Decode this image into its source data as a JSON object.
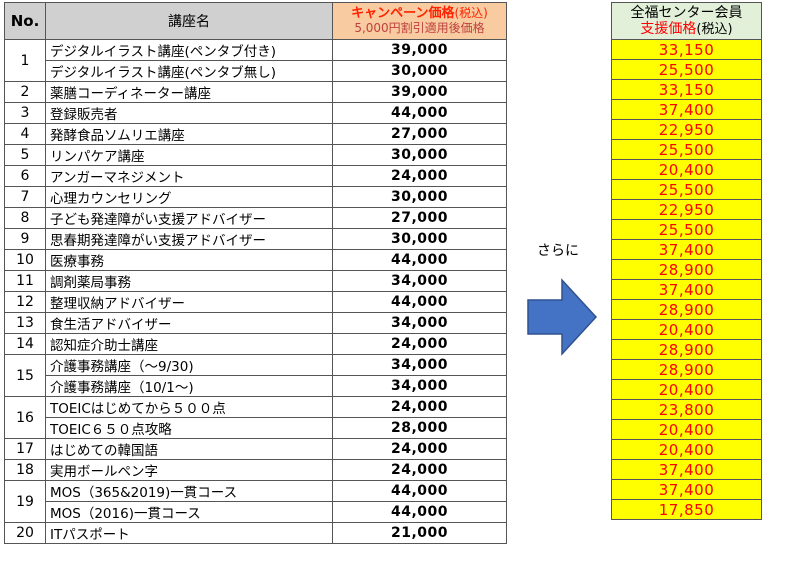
{
  "headers": {
    "no": "No.",
    "name": "講座名",
    "campaign_line1": "キャンペーン価格",
    "campaign_line1_suffix": "(税込)",
    "campaign_line2": "5,000円割引適用後価格",
    "support_line1": "全福センター会員",
    "support_line2": "支援価格",
    "support_line2_suffix": "(税込)"
  },
  "arrow_label": "さらに",
  "colors": {
    "header_gray": "#d0d0d0",
    "campaign_header": "#f8cba0",
    "support_header": "#e2efd9",
    "support_cell": "#ffff00",
    "support_text": "#ff0000",
    "arrow": "#4472c4"
  },
  "rows": [
    {
      "no": "1",
      "name": "デジタルイラスト講座(ペンタブ付き)",
      "price": "39,000",
      "support": "33,150"
    },
    {
      "no": "",
      "name": "デジタルイラスト講座(ペンタブ無し)",
      "price": "30,000",
      "support": "25,500"
    },
    {
      "no": "2",
      "name": "薬膳コーディネーター講座",
      "price": "39,000",
      "support": "33,150"
    },
    {
      "no": "3",
      "name": "登録販売者",
      "price": "44,000",
      "support": "37,400"
    },
    {
      "no": "4",
      "name": "発酵食品ソムリエ講座",
      "price": "27,000",
      "support": "22,950"
    },
    {
      "no": "5",
      "name": "リンパケア講座",
      "price": "30,000",
      "support": "25,500"
    },
    {
      "no": "6",
      "name": "アンガーマネジメント",
      "price": "24,000",
      "support": "20,400"
    },
    {
      "no": "7",
      "name": "心理カウンセリング",
      "price": "30,000",
      "support": "25,500"
    },
    {
      "no": "8",
      "name": "子ども発達障がい支援アドバイザー",
      "price": "27,000",
      "support": "22,950"
    },
    {
      "no": "9",
      "name": "思春期発達障がい支援アドバイザー",
      "price": "30,000",
      "support": "25,500"
    },
    {
      "no": "10",
      "name": "医療事務",
      "price": "44,000",
      "support": "37,400"
    },
    {
      "no": "11",
      "name": "調剤薬局事務",
      "price": "34,000",
      "support": "28,900"
    },
    {
      "no": "12",
      "name": "整理収納アドバイザー",
      "price": "44,000",
      "support": "37,400"
    },
    {
      "no": "13",
      "name": "食生活アドバイザー",
      "price": "34,000",
      "support": "28,900"
    },
    {
      "no": "14",
      "name": "認知症介助士講座",
      "price": "24,000",
      "support": "20,400"
    },
    {
      "no": "15",
      "name": "介護事務講座（～9/30)",
      "price": "34,000",
      "support": "28,900"
    },
    {
      "no": "",
      "name": "介護事務講座（10/1～)",
      "price": "34,000",
      "support": "28,900"
    },
    {
      "no": "16",
      "name": "TOEICはじめてから５００点",
      "price": "24,000",
      "support": "20,400"
    },
    {
      "no": "",
      "name": "TOEIC６５０点攻略",
      "price": "28,000",
      "support": "23,800"
    },
    {
      "no": "17",
      "name": "はじめての韓国語",
      "price": "24,000",
      "support": "20,400"
    },
    {
      "no": "18",
      "name": "実用ボールペン字",
      "price": "24,000",
      "support": "20,400"
    },
    {
      "no": "19",
      "name": "MOS（365&2019)一貫コース",
      "price": "44,000",
      "support": "37,400"
    },
    {
      "no": "",
      "name": "MOS（2016)一貫コース",
      "price": "44,000",
      "support": "37,400"
    },
    {
      "no": "20",
      "name": "ITパスポート",
      "price": "21,000",
      "support": "17,850"
    }
  ]
}
